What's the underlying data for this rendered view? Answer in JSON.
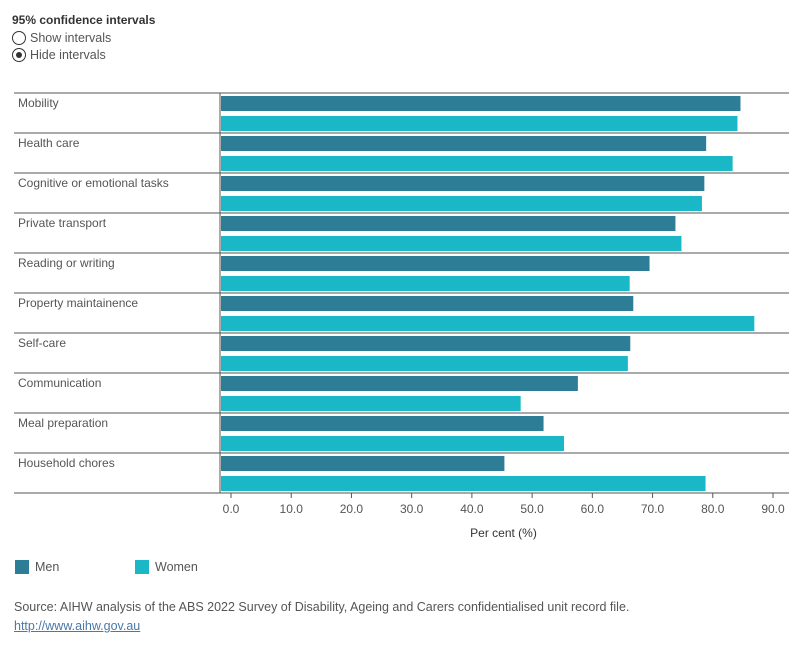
{
  "controls": {
    "title": "95% confidence intervals",
    "options": [
      {
        "label": "Show intervals",
        "selected": false
      },
      {
        "label": "Hide intervals",
        "selected": true
      }
    ]
  },
  "chart_data": {
    "type": "bar",
    "orientation": "horizontal",
    "xlabel": "Per cent (%)",
    "xlim": [
      0,
      90
    ],
    "xticks": [
      "0.0",
      "10.0",
      "20.0",
      "30.0",
      "40.0",
      "50.0",
      "60.0",
      "70.0",
      "80.0",
      "90.0"
    ],
    "categories": [
      "Mobility",
      "Health care",
      "Cognitive or emotional tasks",
      "Private transport",
      "Reading or writing",
      "Property maintainence",
      "Self-care",
      "Communication",
      "Meal preparation",
      "Household chores"
    ],
    "series": [
      {
        "name": "Men",
        "color": "#2e7d96",
        "values": [
          84.6,
          78.9,
          78.6,
          73.8,
          69.5,
          66.8,
          66.3,
          57.6,
          51.9,
          45.4
        ]
      },
      {
        "name": "Women",
        "color": "#1ab8c6",
        "values": [
          84.1,
          83.3,
          78.2,
          74.8,
          66.2,
          86.9,
          65.9,
          48.1,
          55.3,
          78.8
        ]
      }
    ],
    "legend_position": "bottom-left",
    "grid": false
  },
  "footer": {
    "source": "Source: AIHW analysis of the ABS 2022 Survey of Disability, Ageing and Carers confidentialised unit record file.",
    "link": "http://www.aihw.gov.au"
  }
}
